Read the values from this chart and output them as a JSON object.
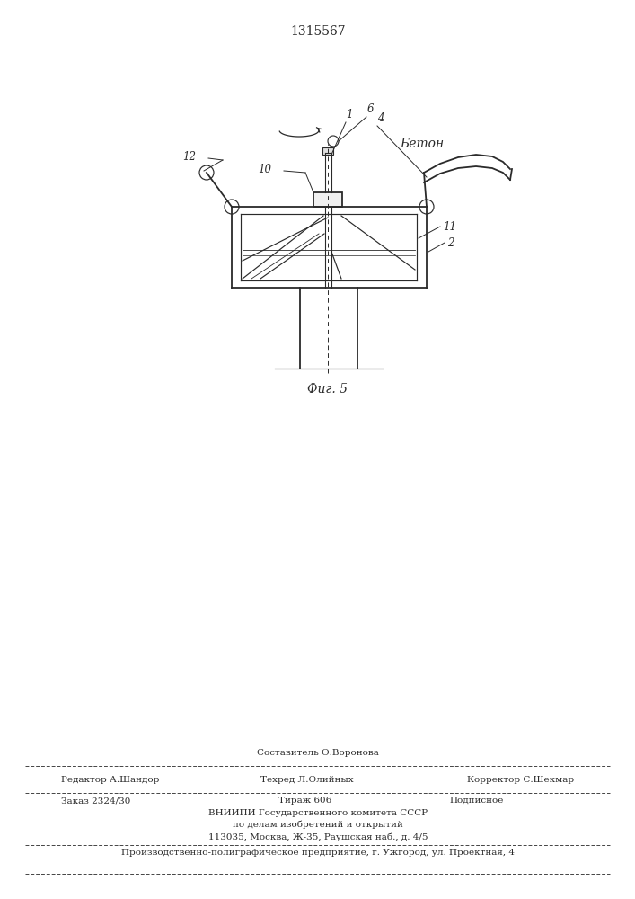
{
  "patent_number": "1315567",
  "fig_label": "Фиг. 5",
  "bg_color": "#ffffff",
  "line_color": "#2a2a2a",
  "text_color": "#2a2a2a",
  "beton_label": "Бетон",
  "footer": {
    "line0_center": "Составитель О.Воронова",
    "line1_left": "Редактор А.Шандор",
    "line1_center": "Техред Л.Олийных",
    "line1_right": "Корректор С.Шекмар",
    "line2_left": "Заказ 2324/30",
    "line2_center": "Тираж 606",
    "line2_right": "Подписное",
    "line3": "ВНИИПИ Государственного комитета СССР",
    "line4": "по делам изобретений и открытий",
    "line5": "113035, Москва, Ж-35, Раушская наб., д. 4/5",
    "line6": "Производственно-полиграфическое предприятие, г. Ужгород, ул. Проектная, 4"
  }
}
